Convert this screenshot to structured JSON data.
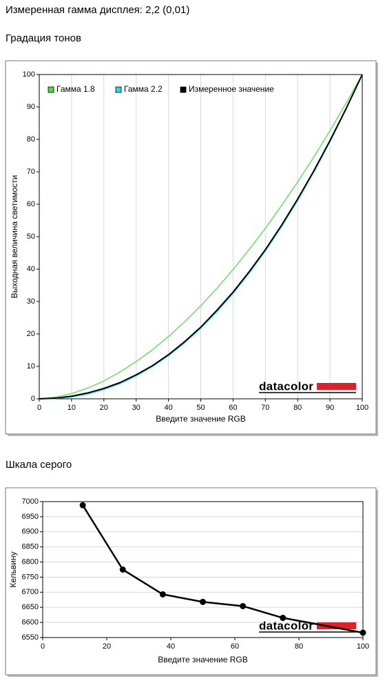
{
  "header": {
    "title": "Измеренная гамма дисплея: 2,2 (0,01)"
  },
  "logo": "datacolor",
  "chart_data": [
    {
      "type": "line",
      "title": "Градация тонов",
      "xlabel": "Введите значение RGB",
      "ylabel": "Выходная величина светимости",
      "x": [
        0,
        5,
        10,
        15,
        20,
        25,
        30,
        35,
        40,
        45,
        50,
        55,
        60,
        65,
        70,
        75,
        80,
        85,
        90,
        95,
        100
      ],
      "series": [
        {
          "name": "Гамма 1.8",
          "color": "#44dd44",
          "values": [
            0,
            0.5,
            1.6,
            3.3,
            5.5,
            8.3,
            11.5,
            15.1,
            19.2,
            23.8,
            28.7,
            34.1,
            39.9,
            46.1,
            52.6,
            59.6,
            66.9,
            74.6,
            82.7,
            91.2,
            100
          ]
        },
        {
          "name": "Гамма 2.2",
          "color": "#22dddd",
          "values": [
            0,
            0.1,
            0.6,
            1.5,
            2.9,
            4.7,
            7.1,
            9.9,
            13.3,
            17.3,
            21.8,
            26.9,
            32.5,
            38.8,
            45.6,
            53.1,
            61.2,
            69.9,
            79.3,
            89.3,
            100
          ]
        },
        {
          "name": "Измеренное значение",
          "color": "#000000",
          "values": [
            0,
            0.2,
            0.8,
            1.8,
            3.2,
            5.0,
            7.4,
            10.2,
            13.6,
            17.6,
            22.1,
            27.3,
            32.9,
            39.2,
            46.0,
            53.5,
            61.6,
            70.3,
            79.6,
            89.5,
            100
          ]
        }
      ],
      "xlim": [
        0,
        100
      ],
      "xticks": [
        0,
        10,
        20,
        30,
        40,
        50,
        60,
        70,
        80,
        90,
        100
      ],
      "ylim": [
        0,
        100
      ],
      "yticks": [
        0,
        10,
        20,
        30,
        40,
        50,
        60,
        70,
        80,
        90,
        100
      ],
      "grid": "x",
      "legend": "top"
    },
    {
      "type": "line",
      "title": "Шкала серого",
      "xlabel": "Введите значение RGB",
      "ylabel": "Кельвину",
      "x": [
        12.5,
        25,
        37.5,
        50,
        62.5,
        75,
        100
      ],
      "series": [
        {
          "color": "#000000",
          "values": [
            6988,
            6775,
            6693,
            6668,
            6654,
            6615,
            6566
          ]
        }
      ],
      "xlim": [
        0,
        100
      ],
      "xticks": [
        0,
        20,
        40,
        60,
        80,
        100
      ],
      "ylim": [
        6550,
        7000
      ],
      "yticks": [
        6550,
        6600,
        6650,
        6700,
        6750,
        6800,
        6850,
        6900,
        6950,
        7000
      ],
      "grid": "y",
      "markers": true
    }
  ]
}
